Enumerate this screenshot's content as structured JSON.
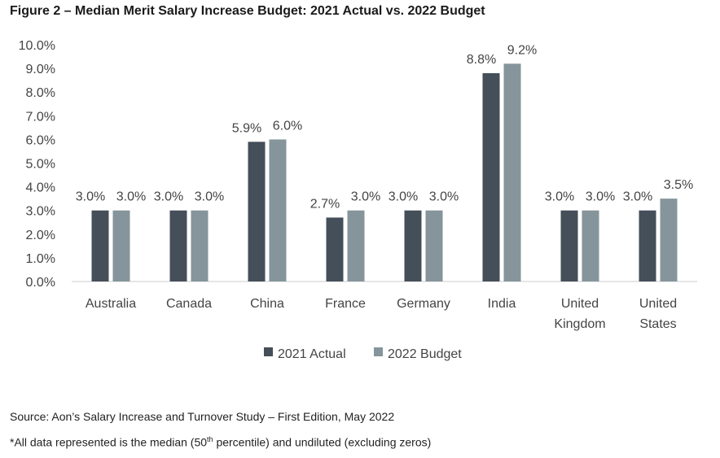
{
  "title": "Figure 2 – Median Merit Salary Increase Budget: 2021 Actual vs. 2022 Budget",
  "source": "Source: Aon’s Salary Increase and Turnover Study – First Edition, May 2022",
  "note": {
    "before": "*All data represented is the median (50",
    "sup": "th",
    "after": " percentile) and undiluted (excluding zeros)"
  },
  "colors": {
    "actual": "#454f5a",
    "budget": "#85959b"
  },
  "chart_data": {
    "type": "bar",
    "title": "Figure 2 – Median Merit Salary Increase Budget: 2021 Actual vs. 2022 Budget",
    "xlabel": "",
    "ylabel": "",
    "ylim": [
      0,
      10
    ],
    "yticks": [
      "0.0%",
      "1.0%",
      "2.0%",
      "3.0%",
      "4.0%",
      "5.0%",
      "6.0%",
      "7.0%",
      "8.0%",
      "9.0%",
      "10.0%"
    ],
    "grid": false,
    "legend": "bottom",
    "categories": [
      [
        "Australia"
      ],
      [
        "Canada"
      ],
      [
        "China"
      ],
      [
        "France"
      ],
      [
        "Germany"
      ],
      [
        "India"
      ],
      [
        "United",
        "Kingdom"
      ],
      [
        "United",
        "States"
      ]
    ],
    "series": [
      {
        "name": "2021 Actual",
        "values": [
          3.0,
          3.0,
          5.9,
          2.7,
          3.0,
          8.8,
          3.0,
          3.0
        ],
        "labels": [
          "3.0%",
          "3.0%",
          "5.9%",
          "2.7%",
          "3.0%",
          "8.8%",
          "3.0%",
          "3.0%"
        ]
      },
      {
        "name": "2022 Budget",
        "values": [
          3.0,
          3.0,
          6.0,
          3.0,
          3.0,
          9.2,
          3.0,
          3.5
        ],
        "labels": [
          "3.0%",
          "3.0%",
          "6.0%",
          "3.0%",
          "3.0%",
          "9.2%",
          "3.0%",
          "3.5%"
        ]
      }
    ]
  }
}
